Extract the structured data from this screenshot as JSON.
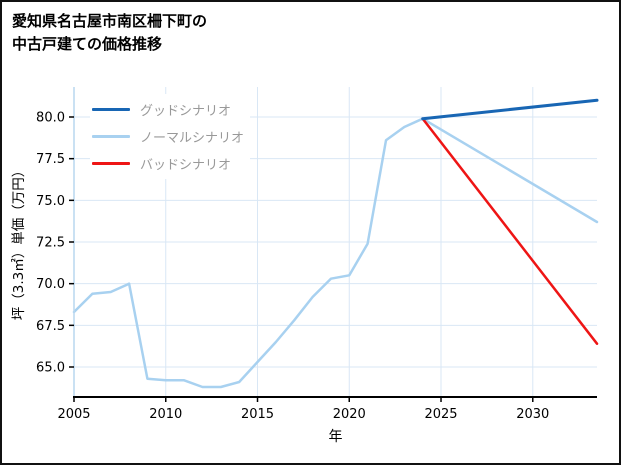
{
  "title_lines": [
    "愛知県名古屋市南区柵下町の",
    "中古戸建ての価格推移"
  ],
  "chart_data": {
    "type": "line",
    "title": "愛知県名古屋市南区柵下町の中古戸建ての価格推移",
    "xlabel": "年",
    "ylabel": "坪（3.3㎡）単価（万円）",
    "xlim": [
      2005,
      2033.5
    ],
    "ylim": [
      63.2,
      81.8
    ],
    "xticks": [
      2005,
      2010,
      2015,
      2020,
      2025,
      2030
    ],
    "yticks": [
      65.0,
      67.5,
      70.0,
      72.5,
      75.0,
      77.5,
      80.0
    ],
    "grid": true,
    "grid_color": "#d9e7f5",
    "spine_left_color": "#b9d7ef",
    "spine_bottom_color": "#000000",
    "tick_color": "#000000",
    "legend_position": "upper-left-inside",
    "series": [
      {
        "name": "グッドシナリオ",
        "color": "#1866b4",
        "width": 3,
        "x": [
          2024,
          2033.5
        ],
        "y": [
          79.9,
          81.0
        ]
      },
      {
        "name": "ノーマルシナリオ",
        "color": "#a8d1f0",
        "width": 2.5,
        "x": [
          2005,
          2006,
          2007,
          2008,
          2009,
          2010,
          2011,
          2012,
          2013,
          2014,
          2015,
          2016,
          2017,
          2018,
          2019,
          2020,
          2021,
          2022,
          2023,
          2024,
          2033.5
        ],
        "y": [
          68.3,
          69.4,
          69.5,
          70.0,
          64.3,
          64.2,
          64.2,
          63.8,
          63.8,
          64.1,
          65.3,
          66.5,
          67.8,
          69.2,
          70.3,
          70.5,
          72.4,
          78.6,
          79.4,
          79.9,
          73.7
        ]
      },
      {
        "name": "バッドシナリオ",
        "color": "#ee1515",
        "width": 2.5,
        "x": [
          2024,
          2033.5
        ],
        "y": [
          79.9,
          66.4
        ]
      }
    ]
  }
}
